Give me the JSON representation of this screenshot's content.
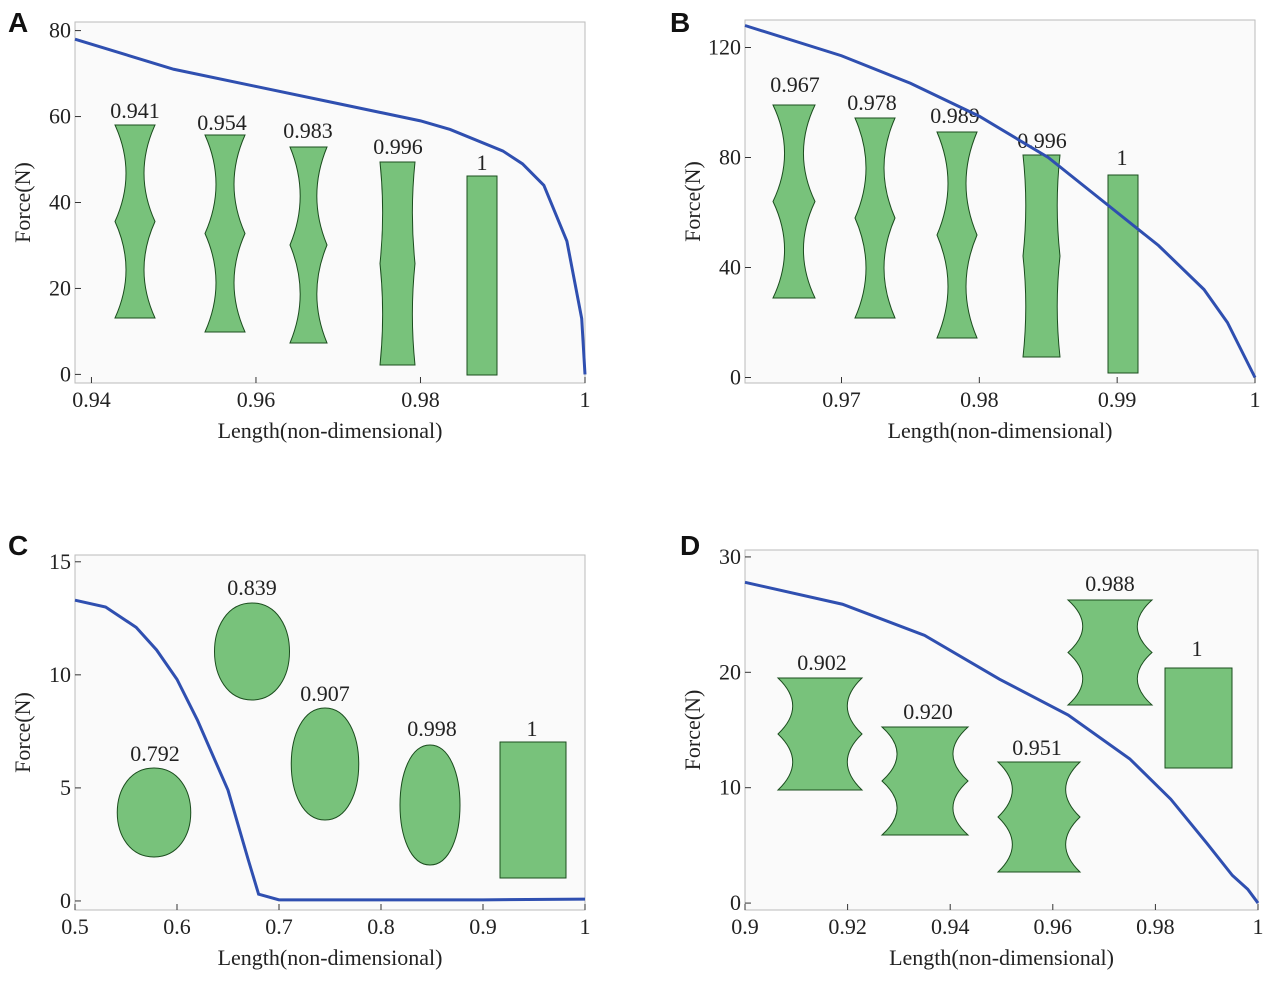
{
  "chart_data": [
    {
      "type": "line",
      "panel": "A",
      "xlabel": "Length(non-dimensional)",
      "ylabel": "Force(N)",
      "color": "#2f4fb0",
      "xlim": [
        0.938,
        1
      ],
      "ylim": [
        -2,
        82
      ],
      "xticks": [
        0.94,
        0.96,
        0.98,
        1
      ],
      "yticks": [
        0,
        20,
        40,
        60,
        80
      ],
      "x": [
        0.938,
        0.95,
        0.96,
        0.97,
        0.98,
        0.9836,
        0.99,
        0.9924,
        0.995,
        0.9978,
        0.9996,
        1
      ],
      "values": [
        78,
        71,
        67,
        63,
        59,
        57,
        52,
        49,
        44,
        31,
        13,
        0
      ],
      "annotations": [
        "0.941",
        "0.954",
        "0.983",
        "0.996",
        "1"
      ]
    },
    {
      "type": "line",
      "panel": "B",
      "xlabel": "Length(non-dimensional)",
      "ylabel": "Force(N)",
      "color": "#2f4fb0",
      "xlim": [
        0.963,
        1
      ],
      "ylim": [
        -2,
        130
      ],
      "xticks": [
        0.97,
        0.98,
        0.99,
        1
      ],
      "yticks": [
        0,
        40,
        80,
        120
      ],
      "x": [
        0.963,
        0.97,
        0.975,
        0.98,
        0.985,
        0.99,
        0.993,
        0.9963,
        0.998,
        0.9993,
        1
      ],
      "values": [
        128,
        117,
        107,
        95,
        80,
        60,
        48,
        32,
        20,
        7,
        0
      ],
      "annotations": [
        "0.967",
        "0.978",
        "0.989",
        "0.996",
        "1"
      ]
    },
    {
      "type": "line",
      "panel": "C",
      "xlabel": "Length(non-dimensional)",
      "ylabel": "Force(N)",
      "color": "#2f4fb0",
      "xlim": [
        0.5,
        1
      ],
      "ylim": [
        -0.4,
        15.3
      ],
      "xticks": [
        0.5,
        0.6,
        0.7,
        0.8,
        0.9,
        1
      ],
      "yticks": [
        0,
        5,
        10,
        15
      ],
      "x": [
        0.5,
        0.53,
        0.56,
        0.58,
        0.6,
        0.62,
        0.65,
        0.67,
        0.68,
        0.7,
        0.8,
        0.9,
        1
      ],
      "values": [
        13.3,
        13,
        12.1,
        11.1,
        9.8,
        8,
        4.9,
        1.8,
        0.3,
        0.05,
        0.05,
        0.05,
        0.08
      ],
      "annotations": [
        "0.792",
        "0.839",
        "0.907",
        "0.998",
        "1"
      ]
    },
    {
      "type": "line",
      "panel": "D",
      "xlabel": "Length(non-dimensional)",
      "ylabel": "Force(N)",
      "color": "#2f4fb0",
      "xlim": [
        0.9,
        1
      ],
      "ylim": [
        -0.6,
        30.6
      ],
      "xticks": [
        0.9,
        0.92,
        0.94,
        0.96,
        0.98,
        1
      ],
      "yticks": [
        0,
        10,
        20,
        30
      ],
      "x": [
        0.9,
        0.919,
        0.935,
        0.9496,
        0.963,
        0.975,
        0.983,
        0.99,
        0.995,
        0.998,
        1
      ],
      "values": [
        27.8,
        25.9,
        23.2,
        19.4,
        16.3,
        12.5,
        9,
        5.2,
        2.4,
        1.2,
        0
      ],
      "annotations": [
        "0.902",
        "0.920",
        "0.951",
        "0.988",
        "1"
      ]
    }
  ]
}
